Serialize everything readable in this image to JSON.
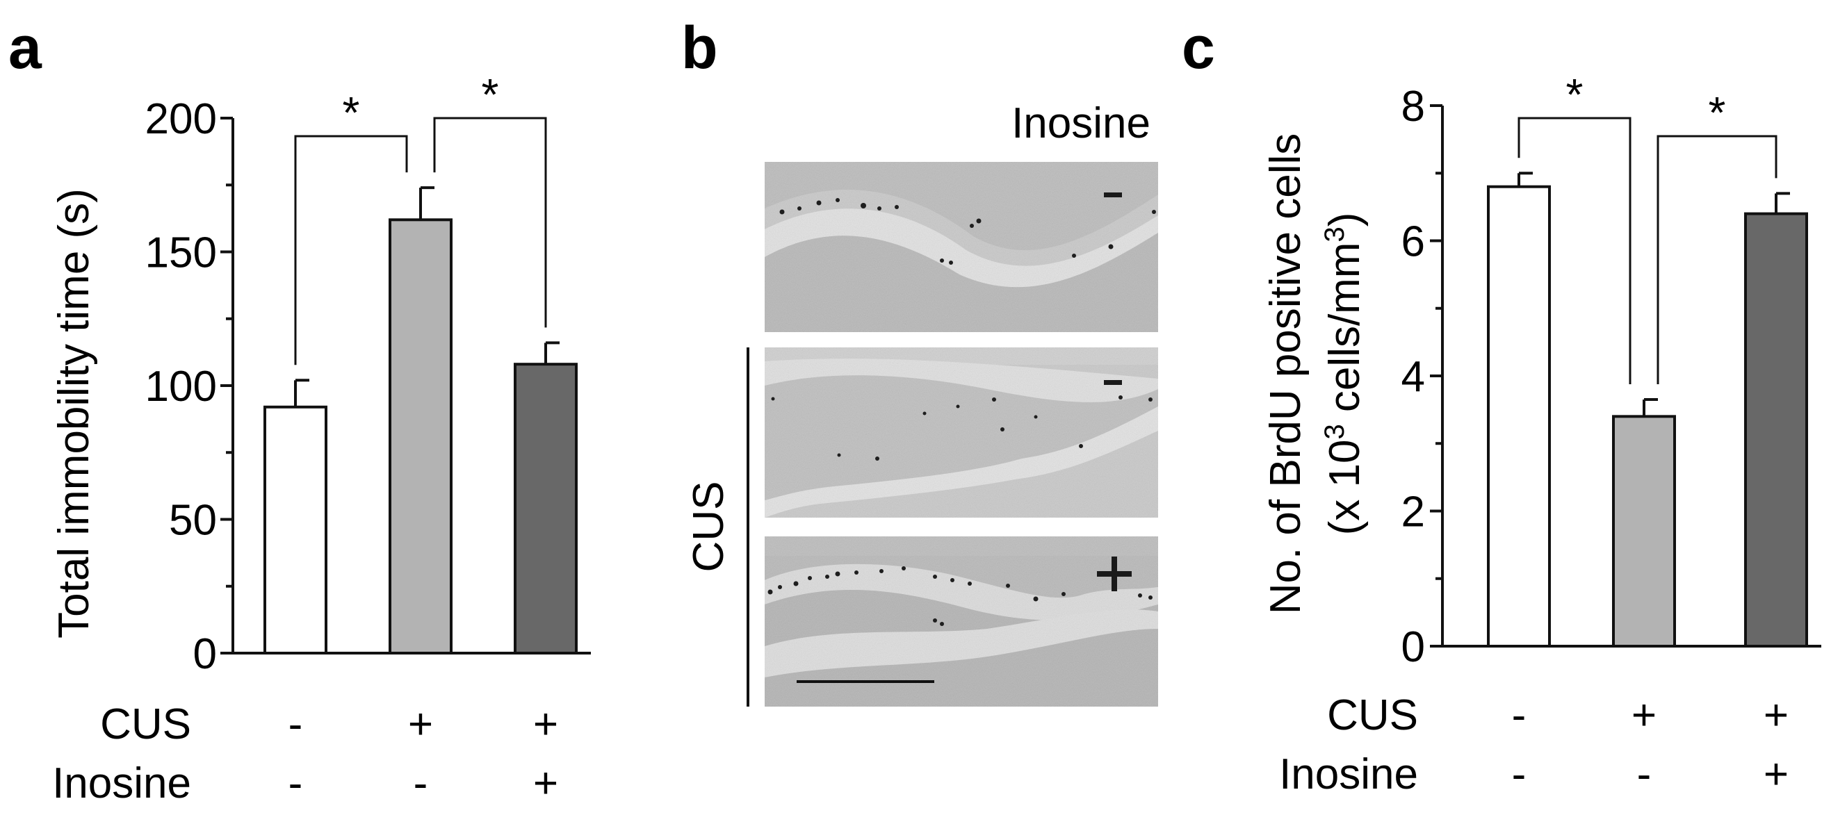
{
  "panels": {
    "a": "a",
    "b": "b",
    "c": "c"
  },
  "condition_labels": {
    "cus": "CUS",
    "inosine": "Inosine"
  },
  "micrograph_panel": {
    "inosine_label": "Inosine",
    "cus_label": "CUS",
    "image_signs": [
      "-",
      "-",
      "+"
    ]
  },
  "chart_data": [
    {
      "type": "bar",
      "panel": "a",
      "title": "",
      "xlabel": "",
      "ylabel": "Total immobility time (s)",
      "ylim": [
        0,
        200
      ],
      "yticks": [
        0,
        50,
        100,
        150,
        200
      ],
      "categories": [
        "CUS - / Inosine -",
        "CUS + / Inosine -",
        "CUS + / Inosine +"
      ],
      "cus": [
        "-",
        "+",
        "+"
      ],
      "inosine": [
        "-",
        "-",
        "+"
      ],
      "values": [
        92,
        162,
        108
      ],
      "errors": [
        10,
        12,
        8
      ],
      "colors": [
        "#ffffff",
        "#b3b3b3",
        "#686868"
      ],
      "significance": [
        {
          "from": 0,
          "to": 1,
          "label": "*"
        },
        {
          "from": 1,
          "to": 2,
          "label": "*"
        }
      ],
      "grid": false
    },
    {
      "type": "bar",
      "panel": "c",
      "title": "",
      "xlabel": "",
      "ylabel": "No. of BrdU positive cells",
      "ylabel_line2_prefix": "(x 10",
      "ylabel_line2_sup1": "3",
      "ylabel_line2_middle": " cells/mm",
      "ylabel_line2_sup2": "3",
      "ylabel_line2_suffix": ")",
      "ylim": [
        0,
        8
      ],
      "yticks": [
        0,
        2,
        4,
        6,
        8
      ],
      "categories": [
        "CUS - / Inosine -",
        "CUS + / Inosine -",
        "CUS + / Inosine +"
      ],
      "cus": [
        "-",
        "+",
        "+"
      ],
      "inosine": [
        "-",
        "-",
        "+"
      ],
      "values": [
        6.8,
        3.4,
        6.4
      ],
      "errors": [
        0.2,
        0.25,
        0.3
      ],
      "colors": [
        "#ffffff",
        "#b3b3b3",
        "#686868"
      ],
      "significance": [
        {
          "from": 0,
          "to": 1,
          "label": "*"
        },
        {
          "from": 1,
          "to": 2,
          "label": "*"
        }
      ],
      "grid": false
    }
  ]
}
